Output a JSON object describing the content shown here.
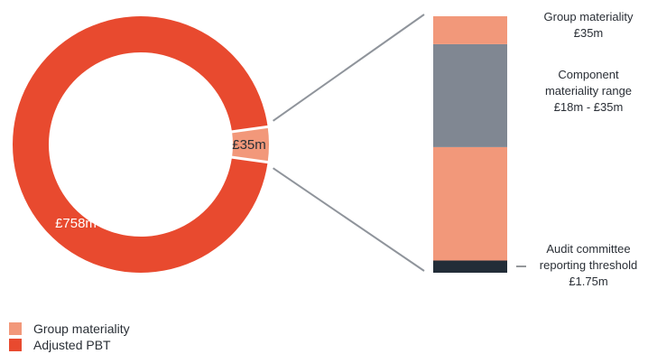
{
  "chart_data": [
    {
      "type": "pie",
      "variant": "donut",
      "slices": [
        {
          "label": "Adjusted PBT",
          "value": 758,
          "display": "£758m",
          "color": "#e84a2f"
        },
        {
          "label": "Group materiality",
          "value": 35,
          "display": "£35m",
          "color": "#f2987a"
        }
      ]
    },
    {
      "type": "bar",
      "variant": "stacked-breakdown",
      "segments": [
        {
          "key": "audit",
          "value": 1.75,
          "color": "#222d38"
        },
        {
          "key": "lower",
          "value": 16.25,
          "color": "#f2987a"
        },
        {
          "key": "component",
          "value": 14.75,
          "color": "#808792"
        },
        {
          "key": "group",
          "value": 4,
          "color": "#f2987a"
        }
      ],
      "annotations": [
        {
          "key": "group",
          "lines": [
            "Group materiality",
            "£35m"
          ]
        },
        {
          "key": "component",
          "lines": [
            "Component",
            "materiality range",
            "£18m - £35m"
          ]
        },
        {
          "key": "audit",
          "lines": [
            "Audit committee",
            "reporting threshold",
            "£1.75m"
          ]
        }
      ]
    }
  ],
  "legend": [
    {
      "label": "Group materiality",
      "color": "#f2987a"
    },
    {
      "label": "Adjusted PBT",
      "color": "#e84a2f"
    }
  ],
  "connector_color": "#8f949b"
}
